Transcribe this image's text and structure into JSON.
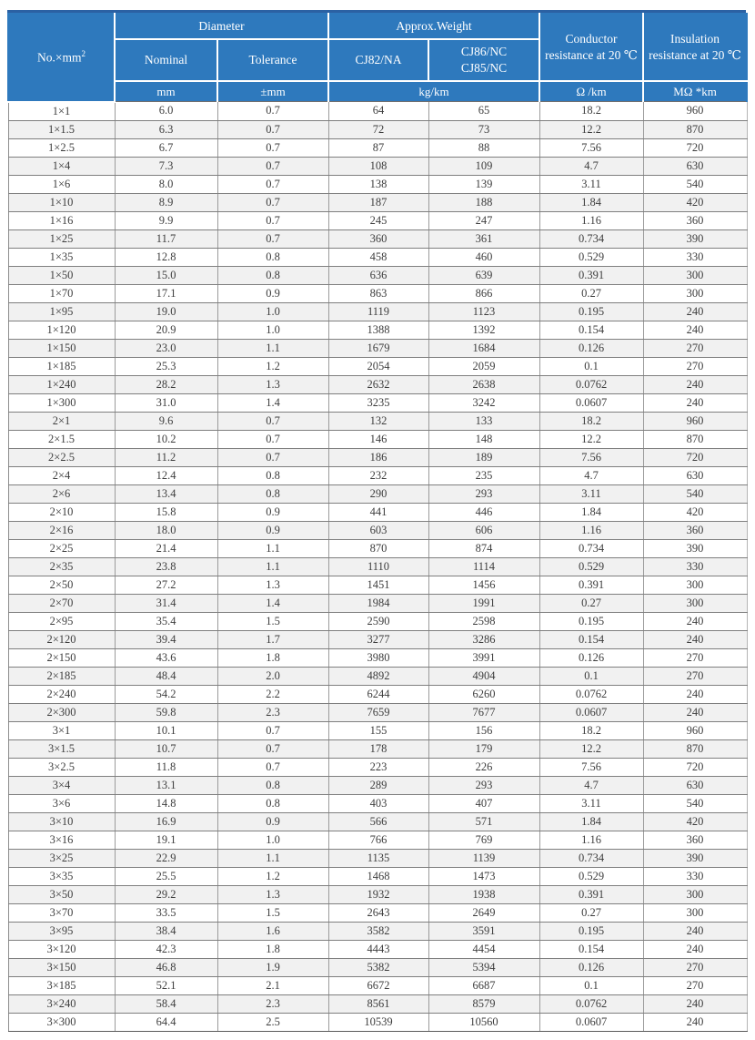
{
  "colors": {
    "header_bg": "#2e79bd",
    "header_text": "#ffffff",
    "row_alt_bg": "#f1f1f1",
    "body_text": "#3d3d3d",
    "top_border": "#2b61a3"
  },
  "table": {
    "header": {
      "size_label_base": "No.×mm",
      "size_label_sup": "2",
      "diameter": "Diameter",
      "nominal": "Nominal",
      "tolerance": "Tolerance",
      "approx_weight": "Approx.Weight",
      "cj82": "CJ82/NA",
      "cj86": "CJ86/NC\nCJ85/NC",
      "conductor_resistance": "Conductor resistance at 20 ℃",
      "insulation_resistance": "Insulation resistance at 20 ℃",
      "unit_mm": "mm",
      "unit_tolerance": "±mm",
      "unit_weight": "kg/km",
      "unit_conductor": "Ω /km",
      "unit_insulation": "MΩ *km"
    },
    "rows": [
      [
        "1×1",
        "6.0",
        "0.7",
        "64",
        "65",
        "18.2",
        "960"
      ],
      [
        "1×1.5",
        "6.3",
        "0.7",
        "72",
        "73",
        "12.2",
        "870"
      ],
      [
        "1×2.5",
        "6.7",
        "0.7",
        "87",
        "88",
        "7.56",
        "720"
      ],
      [
        "1×4",
        "7.3",
        "0.7",
        "108",
        "109",
        "4.7",
        "630"
      ],
      [
        "1×6",
        "8.0",
        "0.7",
        "138",
        "139",
        "3.11",
        "540"
      ],
      [
        "1×10",
        "8.9",
        "0.7",
        "187",
        "188",
        "1.84",
        "420"
      ],
      [
        "1×16",
        "9.9",
        "0.7",
        "245",
        "247",
        "1.16",
        "360"
      ],
      [
        "1×25",
        "11.7",
        "0.7",
        "360",
        "361",
        "0.734",
        "390"
      ],
      [
        "1×35",
        "12.8",
        "0.8",
        "458",
        "460",
        "0.529",
        "330"
      ],
      [
        "1×50",
        "15.0",
        "0.8",
        "636",
        "639",
        "0.391",
        "300"
      ],
      [
        "1×70",
        "17.1",
        "0.9",
        "863",
        "866",
        "0.27",
        "300"
      ],
      [
        "1×95",
        "19.0",
        "1.0",
        "1119",
        "1123",
        "0.195",
        "240"
      ],
      [
        "1×120",
        "20.9",
        "1.0",
        "1388",
        "1392",
        "0.154",
        "240"
      ],
      [
        "1×150",
        "23.0",
        "1.1",
        "1679",
        "1684",
        "0.126",
        "270"
      ],
      [
        "1×185",
        "25.3",
        "1.2",
        "2054",
        "2059",
        "0.1",
        "270"
      ],
      [
        "1×240",
        "28.2",
        "1.3",
        "2632",
        "2638",
        "0.0762",
        "240"
      ],
      [
        "1×300",
        "31.0",
        "1.4",
        "3235",
        "3242",
        "0.0607",
        "240"
      ],
      [
        "2×1",
        "9.6",
        "0.7",
        "132",
        "133",
        "18.2",
        "960"
      ],
      [
        "2×1.5",
        "10.2",
        "0.7",
        "146",
        "148",
        "12.2",
        "870"
      ],
      [
        "2×2.5",
        "11.2",
        "0.7",
        "186",
        "189",
        "7.56",
        "720"
      ],
      [
        "2×4",
        "12.4",
        "0.8",
        "232",
        "235",
        "4.7",
        "630"
      ],
      [
        "2×6",
        "13.4",
        "0.8",
        "290",
        "293",
        "3.11",
        "540"
      ],
      [
        "2×10",
        "15.8",
        "0.9",
        "441",
        "446",
        "1.84",
        "420"
      ],
      [
        "2×16",
        "18.0",
        "0.9",
        "603",
        "606",
        "1.16",
        "360"
      ],
      [
        "2×25",
        "21.4",
        "1.1",
        "870",
        "874",
        "0.734",
        "390"
      ],
      [
        "2×35",
        "23.8",
        "1.1",
        "1110",
        "1114",
        "0.529",
        "330"
      ],
      [
        "2×50",
        "27.2",
        "1.3",
        "1451",
        "1456",
        "0.391",
        "300"
      ],
      [
        "2×70",
        "31.4",
        "1.4",
        "1984",
        "1991",
        "0.27",
        "300"
      ],
      [
        "2×95",
        "35.4",
        "1.5",
        "2590",
        "2598",
        "0.195",
        "240"
      ],
      [
        "2×120",
        "39.4",
        "1.7",
        "3277",
        "3286",
        "0.154",
        "240"
      ],
      [
        "2×150",
        "43.6",
        "1.8",
        "3980",
        "3991",
        "0.126",
        "270"
      ],
      [
        "2×185",
        "48.4",
        "2.0",
        "4892",
        "4904",
        "0.1",
        "270"
      ],
      [
        "2×240",
        "54.2",
        "2.2",
        "6244",
        "6260",
        "0.0762",
        "240"
      ],
      [
        "2×300",
        "59.8",
        "2.3",
        "7659",
        "7677",
        "0.0607",
        "240"
      ],
      [
        "3×1",
        "10.1",
        "0.7",
        "155",
        "156",
        "18.2",
        "960"
      ],
      [
        "3×1.5",
        "10.7",
        "0.7",
        "178",
        "179",
        "12.2",
        "870"
      ],
      [
        "3×2.5",
        "11.8",
        "0.7",
        "223",
        "226",
        "7.56",
        "720"
      ],
      [
        "3×4",
        "13.1",
        "0.8",
        "289",
        "293",
        "4.7",
        "630"
      ],
      [
        "3×6",
        "14.8",
        "0.8",
        "403",
        "407",
        "3.11",
        "540"
      ],
      [
        "3×10",
        "16.9",
        "0.9",
        "566",
        "571",
        "1.84",
        "420"
      ],
      [
        "3×16",
        "19.1",
        "1.0",
        "766",
        "769",
        "1.16",
        "360"
      ],
      [
        "3×25",
        "22.9",
        "1.1",
        "1135",
        "1139",
        "0.734",
        "390"
      ],
      [
        "3×35",
        "25.5",
        "1.2",
        "1468",
        "1473",
        "0.529",
        "330"
      ],
      [
        "3×50",
        "29.2",
        "1.3",
        "1932",
        "1938",
        "0.391",
        "300"
      ],
      [
        "3×70",
        "33.5",
        "1.5",
        "2643",
        "2649",
        "0.27",
        "300"
      ],
      [
        "3×95",
        "38.4",
        "1.6",
        "3582",
        "3591",
        "0.195",
        "240"
      ],
      [
        "3×120",
        "42.3",
        "1.8",
        "4443",
        "4454",
        "0.154",
        "240"
      ],
      [
        "3×150",
        "46.8",
        "1.9",
        "5382",
        "5394",
        "0.126",
        "270"
      ],
      [
        "3×185",
        "52.1",
        "2.1",
        "6672",
        "6687",
        "0.1",
        "270"
      ],
      [
        "3×240",
        "58.4",
        "2.3",
        "8561",
        "8579",
        "0.0762",
        "240"
      ],
      [
        "3×300",
        "64.4",
        "2.5",
        "10539",
        "10560",
        "0.0607",
        "240"
      ]
    ]
  }
}
